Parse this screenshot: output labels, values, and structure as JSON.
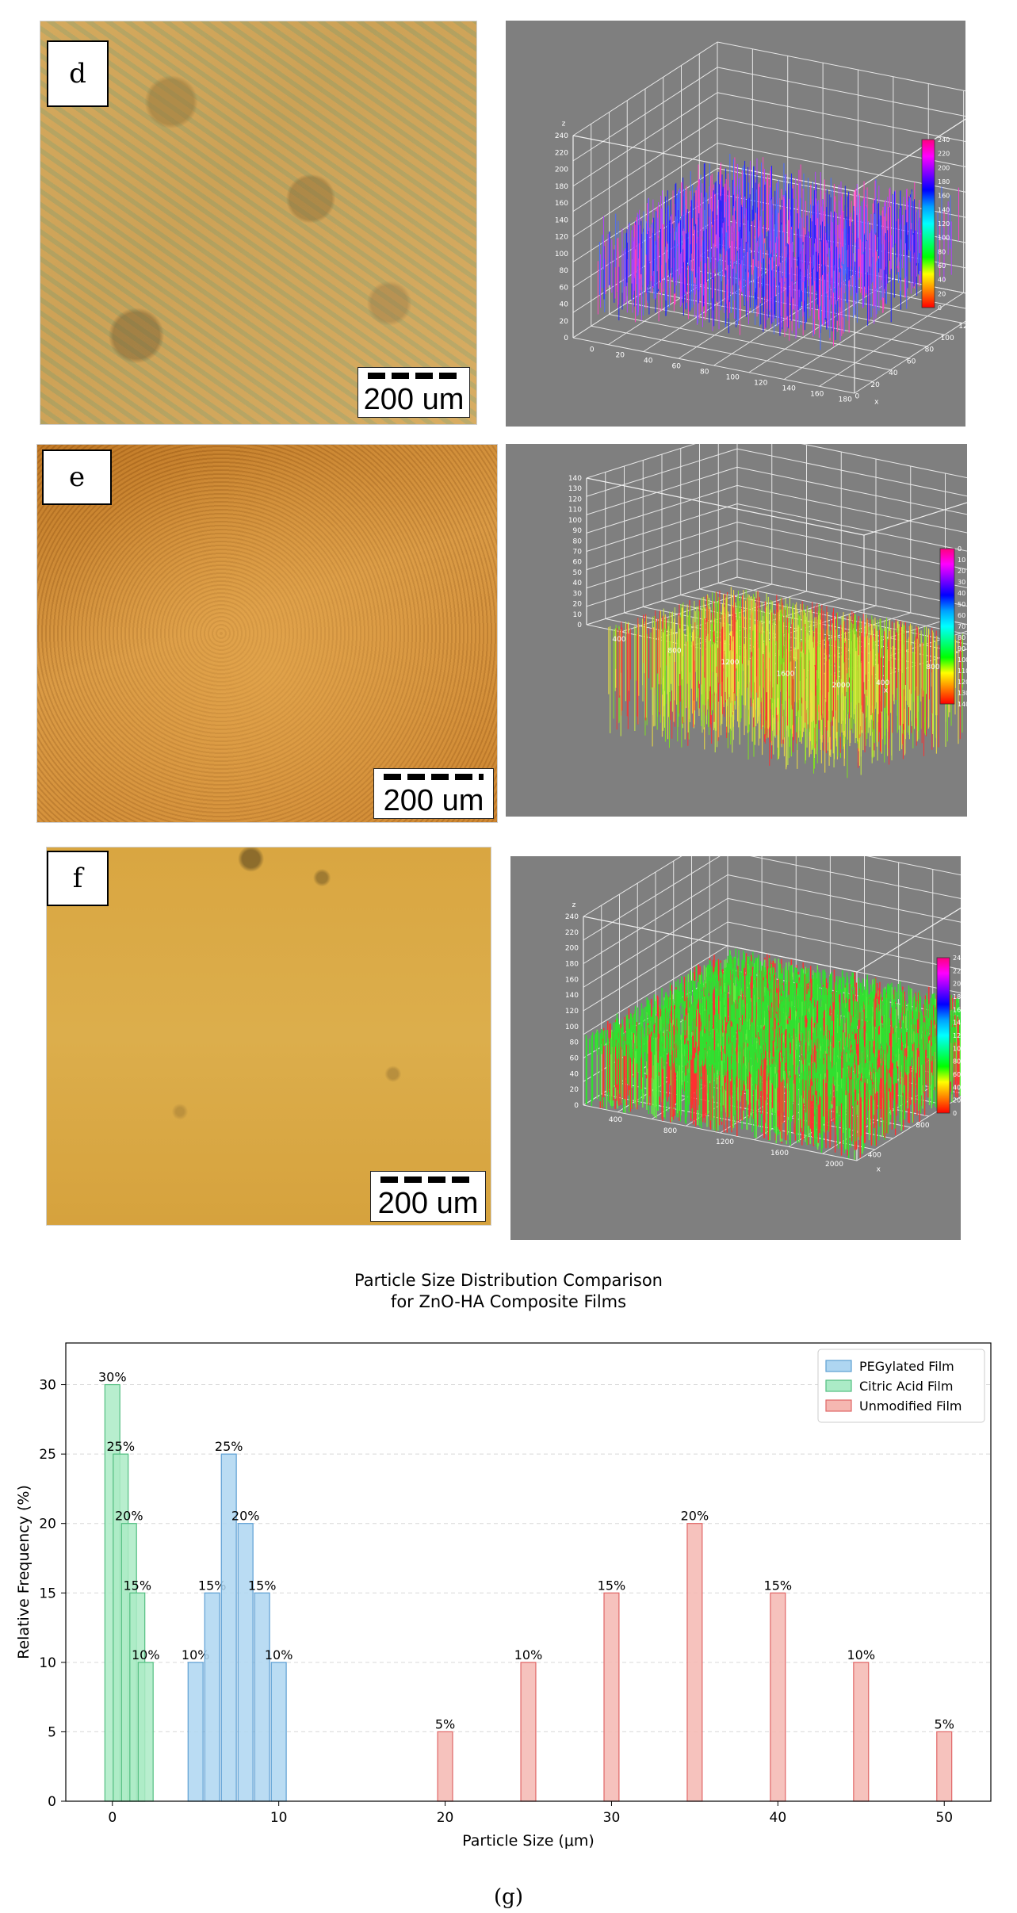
{
  "panels": {
    "d": {
      "label": "d",
      "scale_label": "200 um"
    },
    "e": {
      "label": "e",
      "scale_label": "200 um"
    },
    "f": {
      "label": "f",
      "scale_label": "200 um"
    }
  },
  "surfaces": {
    "d": {
      "z_ticks": [
        "0",
        "20",
        "40",
        "60",
        "80",
        "100",
        "120",
        "140",
        "160",
        "180",
        "200",
        "220",
        "240"
      ],
      "x_ticks": [
        "0",
        "20",
        "40",
        "60",
        "80",
        "100",
        "120",
        "140",
        "160",
        "180"
      ],
      "y_ticks": [
        "0",
        "20",
        "40",
        "60",
        "80",
        "100",
        "120",
        "140"
      ],
      "colorbar_ticks": [
        "240",
        "220",
        "200",
        "180",
        "160",
        "140",
        "120",
        "100",
        "80",
        "60",
        "40",
        "20",
        "0"
      ],
      "axis_z": "z",
      "axis_x": "x",
      "axis_y": "y",
      "colors": [
        "#2020ff",
        "#4a6cff",
        "#b040ff",
        "#ff40c0"
      ]
    },
    "e": {
      "z_ticks": [
        "0",
        "10",
        "20",
        "30",
        "40",
        "50",
        "60",
        "70",
        "80",
        "90",
        "100",
        "110",
        "120",
        "130",
        "140"
      ],
      "x_ticks": [
        "400",
        "800",
        "1200",
        "1600",
        "2000"
      ],
      "y_ticks": [
        "400",
        "800",
        "1200"
      ],
      "colorbar_ticks": [
        "0",
        "10",
        "20",
        "30",
        "40",
        "50",
        "60",
        "70",
        "80",
        "90",
        "100",
        "110",
        "120",
        "130",
        "140"
      ],
      "axis_x": "x",
      "axis_y": "y",
      "colors": [
        "#7fe020",
        "#c8f040",
        "#f0e040",
        "#ff3030"
      ]
    },
    "f": {
      "z_ticks": [
        "0",
        "20",
        "40",
        "60",
        "80",
        "100",
        "120",
        "140",
        "160",
        "180",
        "200",
        "220",
        "240"
      ],
      "x_ticks": [
        "400",
        "800",
        "1200",
        "1600",
        "2000"
      ],
      "y_ticks": [
        "400",
        "800",
        "1200"
      ],
      "colorbar_ticks": [
        "240",
        "220",
        "200",
        "180",
        "160",
        "140",
        "120",
        "100",
        "80",
        "60",
        "40",
        "20",
        "0"
      ],
      "axis_z": "z",
      "axis_x": "x",
      "axis_y": "y",
      "colors": [
        "#30e030",
        "#60f040",
        "#ff3030"
      ]
    }
  },
  "chart_data": {
    "type": "bar",
    "title": "Particle Size Distribution Comparison\nfor ZnO-HA Composite Films",
    "xlabel": "Particle Size (μm)",
    "ylabel": "Relative Frequency (%)",
    "xlim": [
      -2.8,
      52.8
    ],
    "ylim": [
      0,
      33
    ],
    "x_ticks": [
      0,
      10,
      20,
      30,
      40,
      50
    ],
    "y_ticks": [
      0,
      5,
      10,
      15,
      20,
      25,
      30
    ],
    "grid": "y-dashed",
    "legend_position": "top-right",
    "series": [
      {
        "name": "PEGylated Film",
        "color": "#aed6f1",
        "edge": "#5d9fd3",
        "x": [
          5,
          6,
          7,
          8,
          9,
          10
        ],
        "values": [
          10,
          15,
          25,
          20,
          15,
          10
        ],
        "labels": [
          "10%",
          "15%",
          "25%",
          "20%",
          "15%",
          "10%"
        ]
      },
      {
        "name": "Citric Acid Film",
        "color": "#abebc6",
        "edge": "#52be80",
        "x": [
          0,
          0.5,
          1,
          1.5,
          2
        ],
        "values": [
          30,
          25,
          20,
          15,
          10
        ],
        "labels": [
          "30%",
          "25%",
          "20%",
          "15%",
          "10%"
        ]
      },
      {
        "name": "Unmodified Film",
        "color": "#f5b7b1",
        "edge": "#e06666",
        "x": [
          20,
          25,
          30,
          35,
          40,
          45,
          50
        ],
        "values": [
          5,
          10,
          15,
          20,
          15,
          10,
          5
        ],
        "labels": [
          "5%",
          "10%",
          "15%",
          "20%",
          "15%",
          "10%",
          "5%"
        ]
      }
    ]
  },
  "caption": "(g)"
}
